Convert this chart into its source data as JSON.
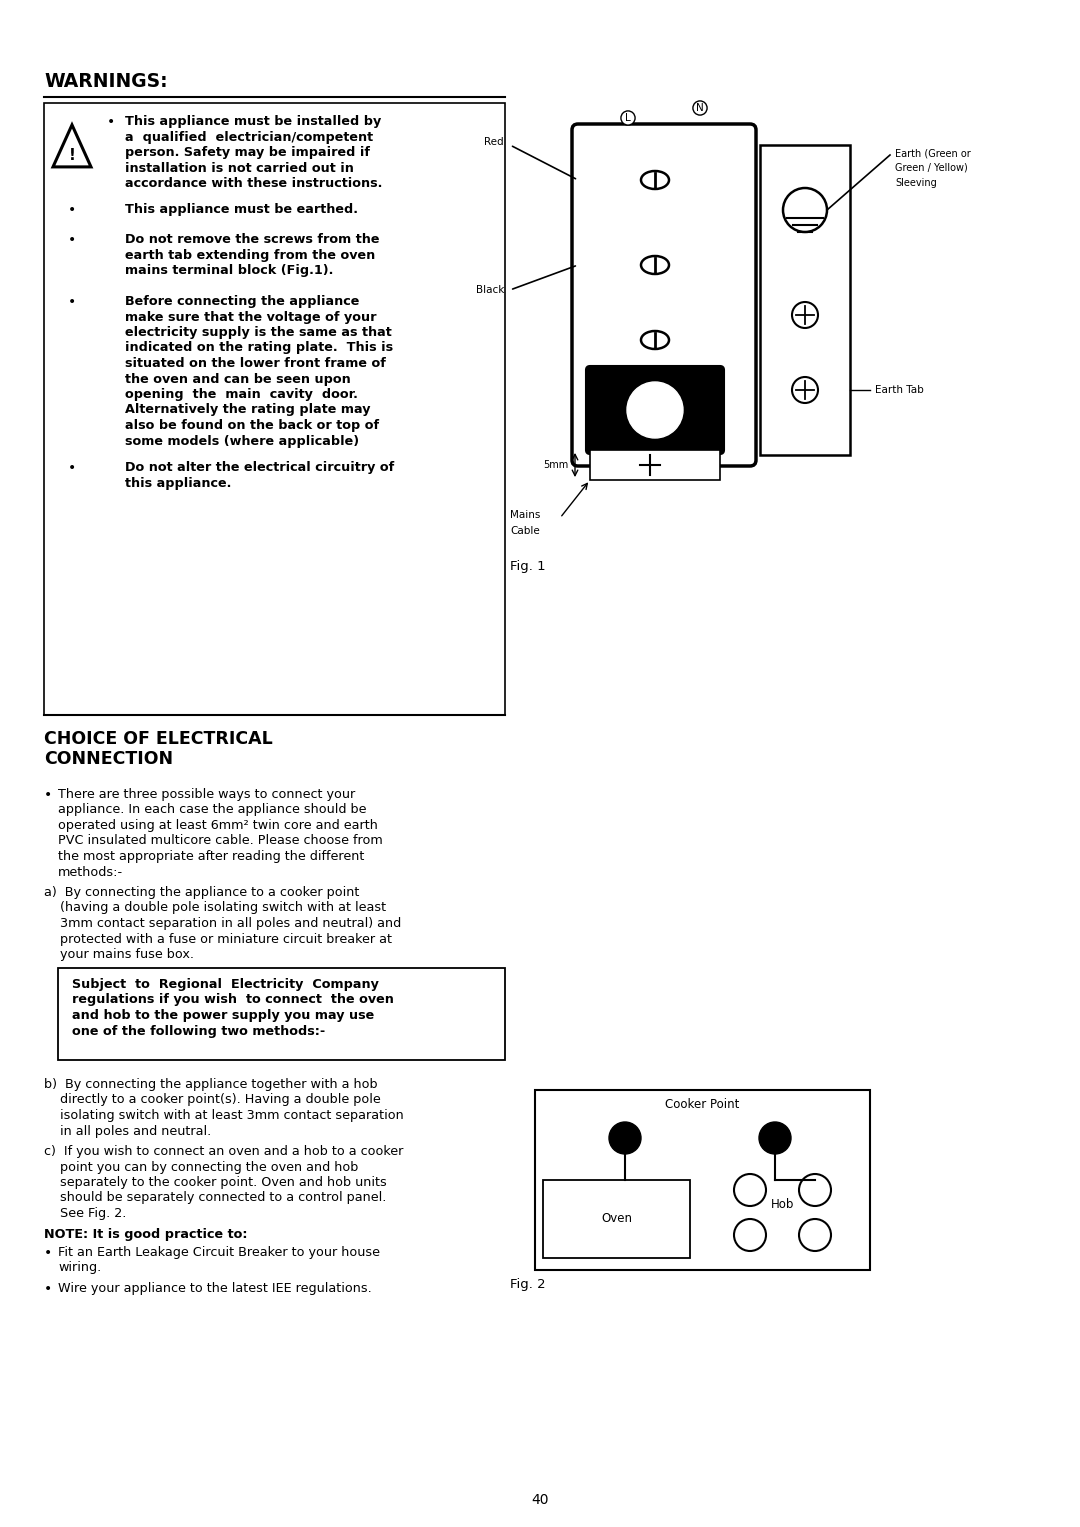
{
  "bg_color": "#ffffff",
  "page_width": 10.8,
  "page_height": 15.27,
  "title_warnings": "WARNINGS:",
  "page_num": "40",
  "fig1_label": "Fig. 1",
  "fig2_label": "Fig. 2",
  "warn_bullet1_line1": "This appliance must be installed by",
  "warn_bullet1_line2": "a  qualified  electrician/competent",
  "warn_bullet1_line3": "person. Safety may be impaired if",
  "warn_bullet1_line4": "installation is not carried out in",
  "warn_bullet1_line5": "accordance with these instructions.",
  "warn_bullet2": "This appliance must be earthed.",
  "warn_bullet3_line1": "Do not remove the screws from the",
  "warn_bullet3_line2": "earth tab extending from the oven",
  "warn_bullet3_line3": "mains terminal block (Fig.1).",
  "warn_bullet4_line1": "Before connecting the appliance",
  "warn_bullet4_line2": "make sure that the voltage of your",
  "warn_bullet4_line3": "electricity supply is the same as that",
  "warn_bullet4_line4": "indicated on the rating plate.  This is",
  "warn_bullet4_line5": "situated on the lower front frame of",
  "warn_bullet4_line6": "the oven and can be seen upon",
  "warn_bullet4_line7": "opening  the  main  cavity  door.",
  "warn_bullet4_line8": "Alternatively the rating plate may",
  "warn_bullet4_line9": "also be found on the back or top of",
  "warn_bullet4_line10": "some models (where applicable)",
  "warn_bullet5_line1": "Do not alter the electrical circuitry of",
  "warn_bullet5_line2": "this appliance.",
  "choice_title": "CHOICE OF ELECTRICAL",
  "choice_title2": "CONNECTION",
  "choice_p1_line1": "There are three possible ways to connect your",
  "choice_p1_line2": "appliance. In each case the appliance should be",
  "choice_p1_line3": "operated using at least 6mm² twin core and earth",
  "choice_p1_line4": "PVC insulated multicore cable. Please choose from",
  "choice_p1_line5": "the most appropriate after reading the different",
  "choice_p1_line6": "methods:-",
  "choice_a_line1": "a)  By connecting the appliance to a cooker point",
  "choice_a_line2": "    (having a double pole isolating switch with at least",
  "choice_a_line3": "    3mm contact separation in all poles and neutral) and",
  "choice_a_line4": "    protected with a fuse or miniature circuit breaker at",
  "choice_a_line5": "    your mains fuse box.",
  "box_line1": "Subject  to  Regional  Electricity  Company",
  "box_line2": "regulations if you wish  to connect  the oven",
  "box_line3": "and hob to the power supply you may use",
  "box_line4": "one of the following two methods:-",
  "choice_b_line1": "b)  By connecting the appliance together with a hob",
  "choice_b_line2": "    directly to a cooker point(s). Having a double pole",
  "choice_b_line3": "    isolating switch with at least 3mm contact separation",
  "choice_b_line4": "    in all poles and neutral.",
  "choice_c_line1": "c)  If you wish to connect an oven and a hob to a cooker",
  "choice_c_line2": "    point you can by connecting the oven and hob",
  "choice_c_line3": "    separately to the cooker point. Oven and hob units",
  "choice_c_line4": "    should be separately connected to a control panel.",
  "choice_c_line5": "    See Fig. 2.",
  "note_header": "NOTE: It is good practice to:",
  "note_b1_line1": "Fit an Earth Leakage Circuit Breaker to your house",
  "note_b1_line2": "wiring.",
  "note_b2": "Wire your appliance to the latest IEE regulations."
}
